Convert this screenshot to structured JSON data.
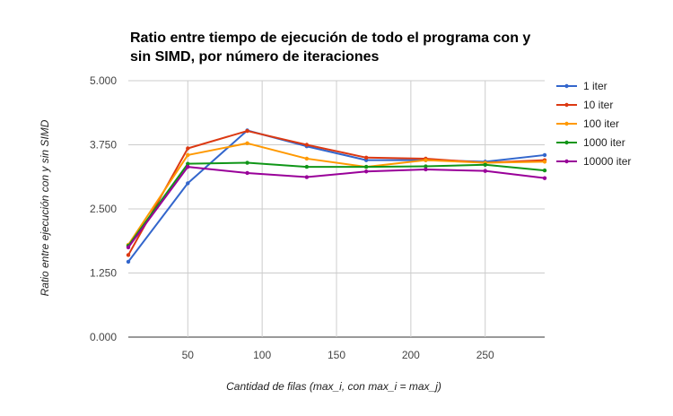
{
  "chart_data": {
    "type": "line",
    "title_lines": [
      "Ratio entre tiempo de ejecución de todo el programa con y",
      "sin SIMD, por número de iteraciones"
    ],
    "xlabel": "Cantidad de filas (max_i, con max_i =  max_j)",
    "ylabel": "Ratio entre ejecución con y sin SIMD",
    "xlim": [
      10,
      290
    ],
    "ylim": [
      0,
      5
    ],
    "x_ticks": [
      50,
      100,
      150,
      200,
      250
    ],
    "y_ticks": [
      0,
      1.25,
      2.5,
      3.75,
      5
    ],
    "y_tick_labels": [
      "0.000",
      "1.250",
      "2.500",
      "3.750",
      "5.000"
    ],
    "grid": true,
    "legend_position": "right",
    "x": [
      10,
      50,
      90,
      130,
      170,
      210,
      250,
      290
    ],
    "series": [
      {
        "name": "1 iter",
        "color": "#3366cc",
        "values": [
          1.47,
          3.0,
          4.03,
          3.72,
          3.45,
          3.45,
          3.42,
          3.55
        ]
      },
      {
        "name": "10 iter",
        "color": "#dc3912",
        "values": [
          1.6,
          3.68,
          4.02,
          3.75,
          3.5,
          3.48,
          3.4,
          3.45
        ]
      },
      {
        "name": "100 iter",
        "color": "#ff9900",
        "values": [
          1.8,
          3.55,
          3.78,
          3.48,
          3.32,
          3.45,
          3.4,
          3.42
        ]
      },
      {
        "name": "1000 iter",
        "color": "#109618",
        "values": [
          1.78,
          3.38,
          3.4,
          3.32,
          3.32,
          3.33,
          3.36,
          3.25
        ]
      },
      {
        "name": "10000 iter",
        "color": "#990099",
        "values": [
          1.75,
          3.32,
          3.2,
          3.12,
          3.23,
          3.27,
          3.24,
          3.1
        ]
      }
    ]
  }
}
